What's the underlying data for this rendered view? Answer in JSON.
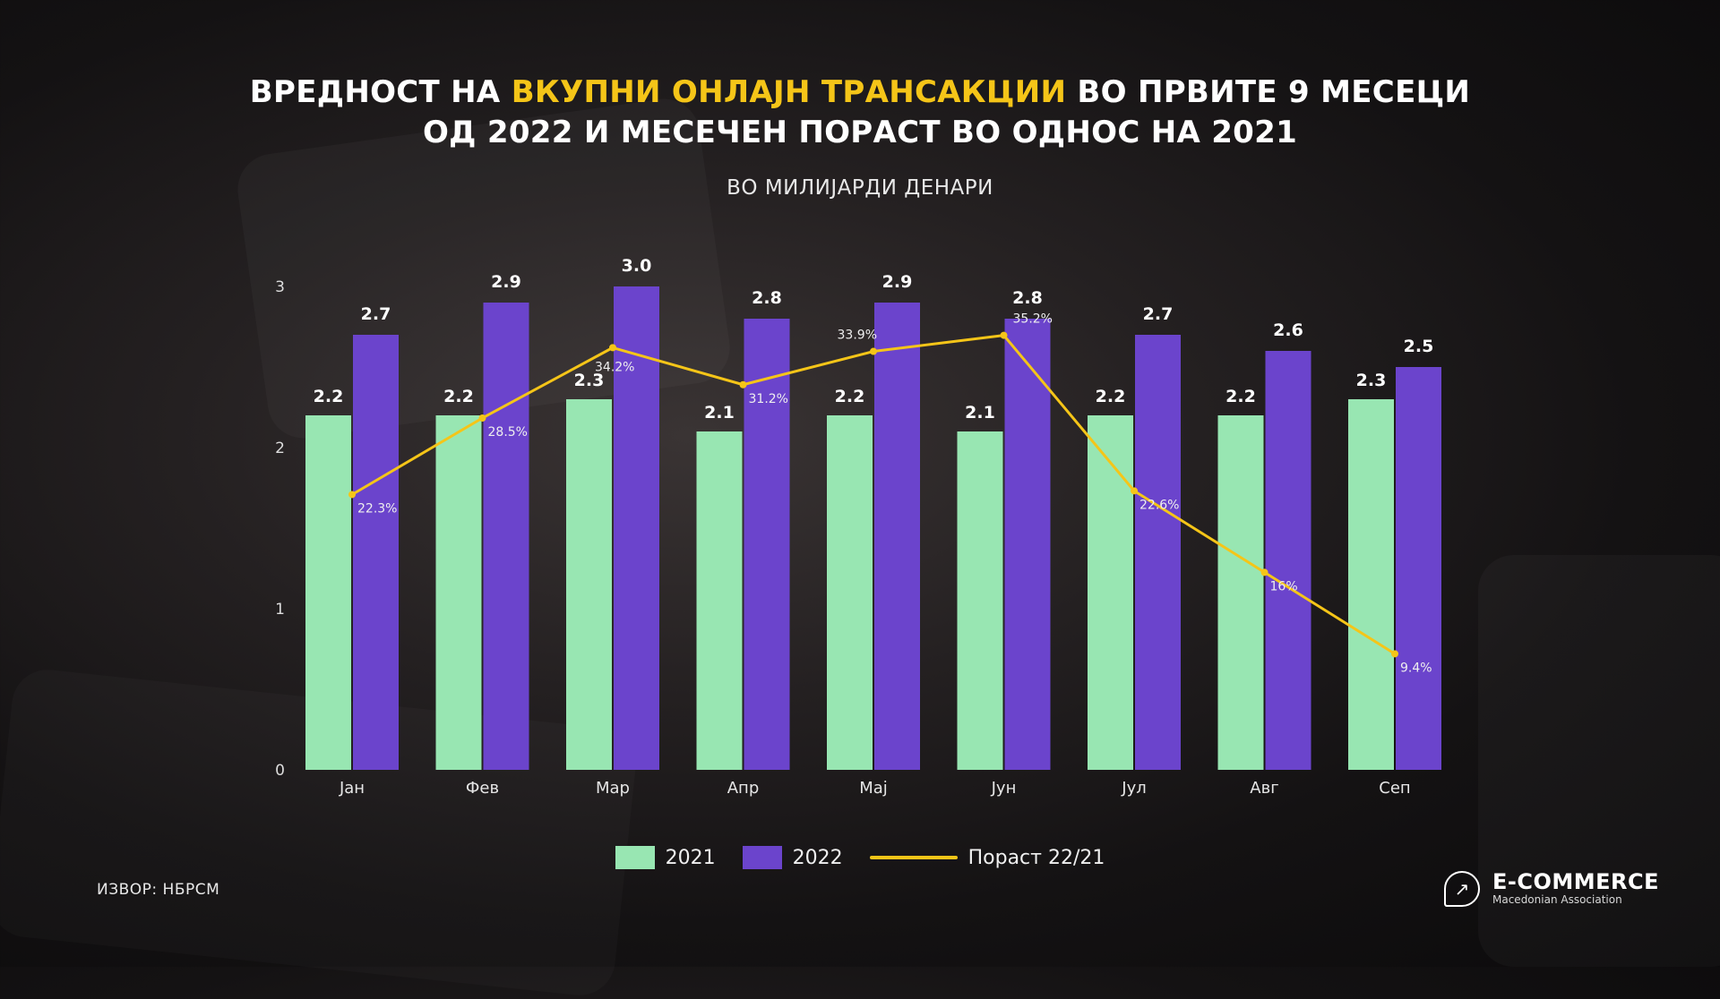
{
  "title": {
    "line1_pre": "ВРЕДНОСТ НА ",
    "line1_highlight": "ВКУПНИ ОНЛАЈН ТРАНСАКЦИИ",
    "line1_post": " ВО ПРВИТЕ 9 МЕСЕЦИ",
    "line2": "ОД 2022 И МЕСЕЧЕН ПОРАСТ ВО ОДНОС НА 2021"
  },
  "subtitle": "ВО МИЛИЈАРДИ ДЕНАРИ",
  "source": "ИЗВОР: НБРСМ",
  "logo": {
    "main": "E-COMMERCE",
    "sub": "Macedonian Association",
    "icon": "chat-growth-icon"
  },
  "colors": {
    "s2021": "#98e6b2",
    "s2022": "#6b44cc",
    "growth": "#f5c518",
    "highlight": "#f5c518"
  },
  "chart_data": {
    "type": "bar",
    "categories": [
      "Јан",
      "Фев",
      "Мар",
      "Апр",
      "Мај",
      "Јун",
      "Јул",
      "Авг",
      "Сеп"
    ],
    "series": [
      {
        "name": "2021",
        "values": [
          2.2,
          2.2,
          2.3,
          2.1,
          2.2,
          2.1,
          2.2,
          2.2,
          2.3
        ],
        "labels": [
          "2.2",
          "2.2",
          "2.3",
          "2.1",
          "2.2",
          "2.1",
          "2.2",
          "2.2",
          "2.3"
        ]
      },
      {
        "name": "2022",
        "values": [
          2.7,
          2.9,
          3.0,
          2.8,
          2.9,
          2.8,
          2.7,
          2.6,
          2.5
        ],
        "labels": [
          "2.7",
          "2.9",
          "3.0",
          "2.8",
          "2.9",
          "2.8",
          "2.7",
          "2.6",
          "2.5"
        ]
      }
    ],
    "line_series": {
      "name": "Пораст 22/21",
      "values": [
        22.3,
        28.5,
        34.2,
        31.2,
        33.9,
        35.2,
        22.6,
        16,
        9.4
      ],
      "labels": [
        "22.3%",
        "28.5%",
        "34.2%",
        "31.2%",
        "33.9%",
        "35.2%",
        "22.6%",
        "16%",
        "9.4%"
      ]
    },
    "yticks": [
      "0",
      "1",
      "2",
      "3"
    ],
    "ylim": [
      0,
      3
    ],
    "grid": false,
    "legend": "bottom-center"
  }
}
